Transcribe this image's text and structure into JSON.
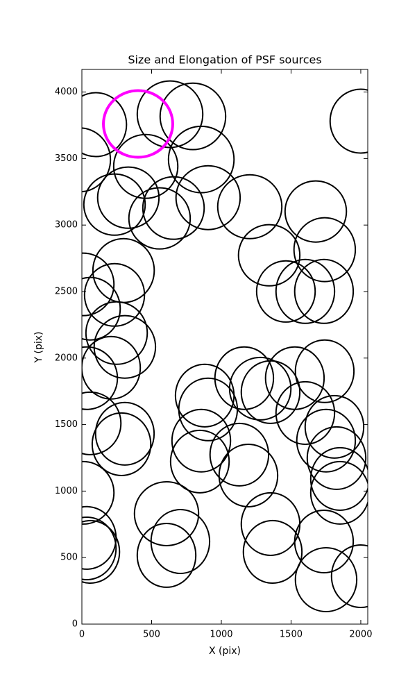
{
  "chart_data": {
    "type": "ellipse",
    "title": "Size and Elongation of PSF sources",
    "x_label": "X (pix)",
    "y_label": "Y (pix)",
    "xlim": [
      0,
      2050
    ],
    "ylim": [
      0,
      4170
    ],
    "xticks": [
      0,
      500,
      1000,
      1500,
      2000
    ],
    "yticks": [
      0,
      500,
      1000,
      1500,
      2000,
      2500,
      3000,
      3500,
      4000
    ],
    "series": [
      {
        "color": "#000000",
        "x": [
          100,
          -15,
          632,
          796,
          458,
          856,
          333,
          234,
          557,
          657,
          905,
          1204,
          1677,
          1741,
          1343,
          1463,
          1602,
          1736,
          299,
          10,
          234,
          60,
          249,
          308,
          209,
          35,
          60,
          308,
          284,
          10,
          35,
          35,
          607,
          706,
          607,
          881,
          905,
          856,
          846,
          1129,
          1194,
          1164,
          1279,
          1353,
          1527,
          1741,
          1602,
          1811,
          1751,
          1826,
          1851,
          1851,
          1353,
          1368,
          1736,
          1751,
          2000,
          2000,
          60
        ],
        "y": [
          3755,
          3490,
          3833,
          3817,
          3441,
          3493,
          3206,
          3154,
          3050,
          3128,
          3206,
          3138,
          3102,
          2815,
          2773,
          2501,
          2501,
          2501,
          2658,
          2554,
          2475,
          2371,
          2188,
          2084,
          1927,
          1849,
          1509,
          1431,
          1352,
          987,
          648,
          569,
          830,
          621,
          517,
          1718,
          1614,
          1379,
          1222,
          1274,
          1117,
          1849,
          1770,
          1744,
          1849,
          1901,
          1587,
          1483,
          1379,
          1248,
          1091,
          987,
          752,
          543,
          621,
          334,
          360,
          3781,
          543
        ],
        "width": [
          440,
          440,
          470,
          470,
          460,
          470,
          440,
          440,
          440,
          440,
          460,
          460,
          440,
          440,
          440,
          420,
          420,
          420,
          440,
          440,
          430,
          430,
          440,
          440,
          420,
          440,
          440,
          420,
          420,
          440,
          420,
          420,
          460,
          420,
          420,
          420,
          420,
          420,
          420,
          420,
          420,
          420,
          440,
          420,
          420,
          420,
          420,
          420,
          420,
          420,
          420,
          420,
          420,
          420,
          420,
          440,
          420,
          440,
          420
        ],
        "height": [
          480,
          480,
          500,
          500,
          480,
          500,
          460,
          460,
          460,
          470,
          480,
          480,
          460,
          480,
          460,
          460,
          480,
          480,
          480,
          470,
          470,
          470,
          470,
          470,
          470,
          470,
          470,
          470,
          470,
          470,
          470,
          470,
          480,
          480,
          480,
          470,
          470,
          470,
          470,
          470,
          470,
          470,
          470,
          470,
          470,
          470,
          470,
          470,
          470,
          470,
          470,
          470,
          470,
          470,
          470,
          480,
          470,
          480,
          470
        ]
      },
      {
        "color": "#ff00ff",
        "x": [
          403
        ],
        "y": [
          3760
        ],
        "width": [
          497
        ],
        "height": [
          501
        ]
      }
    ]
  }
}
